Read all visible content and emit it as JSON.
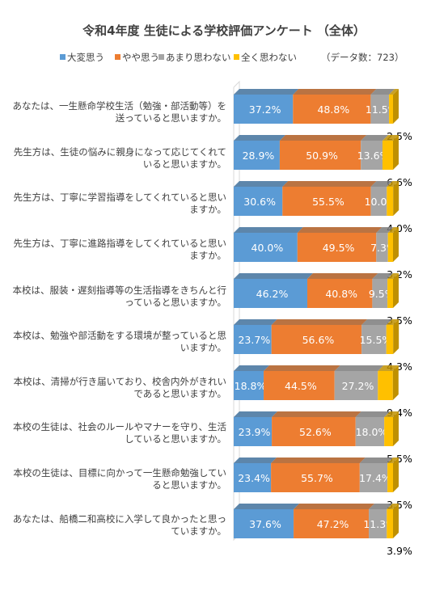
{
  "title": "令和4年度 生徒による学校評価アンケート （全体）",
  "data_count": "（データ数：723）",
  "colors": {
    "series": [
      "#5b9bd5",
      "#ed7d31",
      "#a5a5a5",
      "#ffc000"
    ],
    "series_dark": [
      "#41719c",
      "#ae5a21",
      "#7b7b7b",
      "#bf9000"
    ],
    "frame": "#d9d9d9"
  },
  "chart_data": {
    "type": "bar",
    "stacked": true,
    "percent": true,
    "orientation": "horizontal",
    "title": "令和4年度 生徒による学校評価アンケート （全体）",
    "legend_position": "top",
    "categories": [
      "あなたは、一生懸命学校生活（勉強・部活動等）を送っていると思いますか。",
      "先生方は、生徒の悩みに親身になって応じてくれていると思いますか。",
      "先生方は、丁寧に学習指導をしてくれていると思いますか。",
      "先生方は、丁寧に進路指導をしてくれていると思いますか。",
      "本校は、服装・遅刻指導等の生活指導をきちんと行っていると思いますか。",
      "本校は、勉強や部活動をする環境が整っていると思いますか。",
      "本校は、清掃が行き届いており、校舎内外がきれいであると思いますか。",
      "本校の生徒は、社会のルールやマナーを守り、生活していると思いますか。",
      "本校の生徒は、目標に向かって一生懸命勉強していると思いますか。",
      "あなたは、船橋二和高校に入学して良かったと思っていますか。"
    ],
    "series": [
      {
        "name": "大変思う",
        "values": [
          37.2,
          28.9,
          30.6,
          40.0,
          46.2,
          23.7,
          18.8,
          23.9,
          23.4,
          37.6
        ]
      },
      {
        "name": "やや思う",
        "values": [
          48.8,
          50.9,
          55.5,
          49.5,
          40.8,
          56.6,
          44.5,
          52.6,
          55.7,
          47.2
        ]
      },
      {
        "name": "あまり思わない",
        "values": [
          11.5,
          13.6,
          10.0,
          7.3,
          9.5,
          15.5,
          27.2,
          18.0,
          17.4,
          11.3
        ]
      },
      {
        "name": "全く思わない",
        "values": [
          2.5,
          6.6,
          4.0,
          3.2,
          3.5,
          4.3,
          9.4,
          5.5,
          3.5,
          3.9
        ]
      }
    ],
    "data_labels": [
      [
        "37.2%",
        "48.8%",
        "11.5%",
        "2.5%"
      ],
      [
        "28.9%",
        "50.9%",
        "13.6%",
        "6.6%"
      ],
      [
        "30.6%",
        "55.5%",
        "10.0%",
        "4.0%"
      ],
      [
        "40.0%",
        "49.5%",
        "7.3%",
        "3.2%"
      ],
      [
        "46.2%",
        "40.8%",
        "9.5%",
        "3.5%"
      ],
      [
        "23.7%",
        "56.6%",
        "15.5%",
        "4.3%"
      ],
      [
        "18.8%",
        "44.5%",
        "27.2%",
        "9.4%"
      ],
      [
        "23.9%",
        "52.6%",
        "18.0%",
        "5.5%"
      ],
      [
        "23.4%",
        "55.7%",
        "17.4%",
        "3.5%"
      ],
      [
        "37.6%",
        "47.2%",
        "11.3%",
        "3.9%"
      ]
    ],
    "xlim": [
      0,
      100
    ]
  }
}
